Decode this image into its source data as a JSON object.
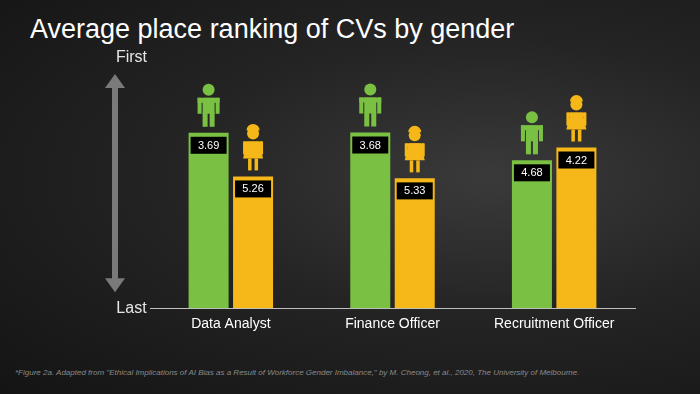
{
  "chart_data": {
    "type": "bar",
    "title": "Average place ranking of CVs by gender",
    "caption": "*Figure 2a. Adapted from \"Ethical Implications of AI Bias as a Result of Workforce Gender Imbalance,\" by M. Cheong, et al., 2020, The University of Melbourne.",
    "categories": [
      "Data Analyst",
      "Finance Officer",
      "Recruitment Officer"
    ],
    "series": [
      {
        "color": "#7ac143",
        "marker": "male",
        "values": [
          3.69,
          3.68,
          4.68
        ]
      },
      {
        "color": "#f6b818",
        "marker": "female",
        "values": [
          5.26,
          5.33,
          4.22
        ]
      }
    ],
    "ylim": [
      10,
      1
    ],
    "yticks": [
      {
        "value": 1,
        "label": "First"
      },
      {
        "value": 10,
        "label": "Last"
      }
    ],
    "grid": false,
    "data_labels": true
  }
}
